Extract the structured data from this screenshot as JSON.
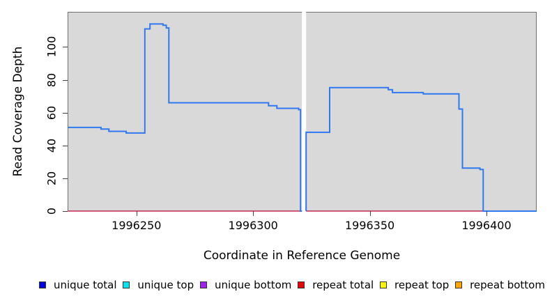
{
  "chart_data": {
    "type": "line",
    "subtype": "step-coverage-plot",
    "title": "",
    "xlabel": "Coordinate in Reference Genome",
    "ylabel": "Read Coverage Depth",
    "xlim": [
      1996220.5,
      1996421.5
    ],
    "ylim": [
      0,
      121.4
    ],
    "x_ticks": [
      "1996250",
      "1996300",
      "1996350",
      "1996400"
    ],
    "x_tick_values": [
      1996250,
      1996300,
      1996350,
      1996400
    ],
    "y_ticks": [
      "0",
      "20",
      "40",
      "60",
      "80",
      "100"
    ],
    "y_tick_values": [
      0,
      20,
      40,
      60,
      80,
      100
    ],
    "grid": false,
    "plot_background": "#d9d9d9",
    "box_border_color": "#6f6f6f",
    "no_data_gap_x": [
      1996320.9,
      1996322.7
    ],
    "gap_color": "#ffffff",
    "series": [
      {
        "name": "repeat total",
        "color": "#d63a64",
        "width": 1.4,
        "segments": [
          [
            [
              1996220.5,
              0
            ],
            [
              1996320.9,
              0
            ]
          ],
          [
            [
              1996322.7,
              0
            ],
            [
              1996421.5,
              0
            ]
          ]
        ]
      },
      {
        "name": "unique total",
        "color": "#2e78f0",
        "width": 2,
        "segments": [
          [
            [
              1996220.5,
              51
            ],
            [
              1996234.8,
              51
            ],
            [
              1996234.8,
              50
            ],
            [
              1996238.2,
              50
            ],
            [
              1996238.2,
              48.6
            ],
            [
              1996245.6,
              48.6
            ],
            [
              1996245.6,
              47.6
            ],
            [
              1996253.6,
              47.6
            ],
            [
              1996253.6,
              111
            ],
            [
              1996255.8,
              111
            ],
            [
              1996255.8,
              114
            ],
            [
              1996261.4,
              114
            ],
            [
              1996261.4,
              113.2
            ],
            [
              1996262.8,
              113.2
            ],
            [
              1996262.8,
              111.6
            ],
            [
              1996263.9,
              111.6
            ],
            [
              1996263.9,
              66
            ],
            [
              1996306.6,
              66
            ],
            [
              1996306.6,
              64.2
            ],
            [
              1996310.2,
              64.2
            ],
            [
              1996310.2,
              62.6
            ],
            [
              1996319.5,
              62.6
            ],
            [
              1996319.5,
              61.8
            ],
            [
              1996320.3,
              61.8
            ],
            [
              1996320.3,
              0
            ],
            [
              1996320.9,
              0
            ]
          ],
          [
            [
              1996322.7,
              0
            ],
            [
              1996322.7,
              48
            ],
            [
              1996332.8,
              48
            ],
            [
              1996332.8,
              75.2
            ],
            [
              1996357.9,
              75.2
            ],
            [
              1996357.9,
              74
            ],
            [
              1996359.7,
              74
            ],
            [
              1996359.7,
              72.2
            ],
            [
              1996372.9,
              72.2
            ],
            [
              1996372.9,
              71.4
            ],
            [
              1996388.2,
              71.4
            ],
            [
              1996388.2,
              62.2
            ],
            [
              1996389.7,
              62.2
            ],
            [
              1996389.7,
              26.2
            ],
            [
              1996397.2,
              26.2
            ],
            [
              1996397.2,
              25.4
            ],
            [
              1996398.6,
              25.4
            ],
            [
              1996398.6,
              0
            ],
            [
              1996421.5,
              0
            ]
          ]
        ]
      }
    ],
    "legend": {
      "position": "bottom",
      "items": [
        {
          "label": "unique total",
          "fill": "#0000e6"
        },
        {
          "label": "unique top",
          "fill": "#00e6f0"
        },
        {
          "label": "unique bottom",
          "fill": "#a020f0"
        },
        {
          "label": "repeat total",
          "fill": "#e60000"
        },
        {
          "label": "repeat top",
          "fill": "#fff500"
        },
        {
          "label": "repeat bottom",
          "fill": "#ffa500"
        }
      ]
    }
  }
}
